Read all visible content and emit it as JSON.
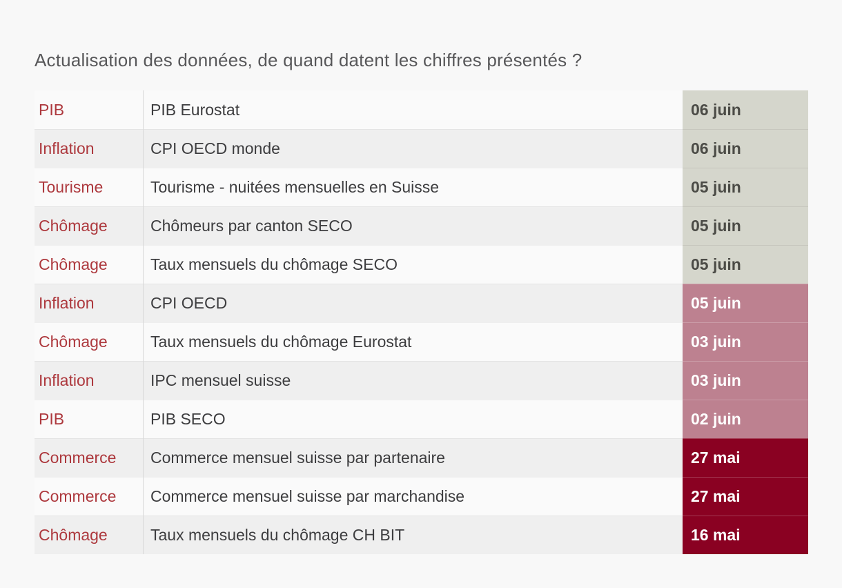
{
  "page": {
    "title": "Actualisation des données, de quand datent les chiffres présentés ?"
  },
  "colors": {
    "page_bg": "#f8f8f8",
    "title_text": "#58585a",
    "category_text": "#ad383d",
    "description_text": "#3d3d3f",
    "row_odd_bg": "#fafafa",
    "row_even_bg": "#efefef",
    "divider": "#d9d9d9",
    "date_recent_bg": "#d5d6cc",
    "date_recent_text": "#4b4b46",
    "date_mid_bg": "#bd8190",
    "date_mid_text": "#ffffff",
    "date_old_bg": "#8a0122",
    "date_old_text": "#ffffff"
  },
  "chart_data": {
    "type": "table",
    "title": "Actualisation des données, de quand datent les chiffres présentés ?",
    "columns": [
      "category",
      "description",
      "date"
    ],
    "rows": [
      {
        "category": "PIB",
        "description": "PIB Eurostat",
        "date": "06 juin",
        "freshness": "recent"
      },
      {
        "category": "Inflation",
        "description": "CPI OECD monde",
        "date": "06 juin",
        "freshness": "recent"
      },
      {
        "category": "Tourisme",
        "description": "Tourisme - nuitées mensuelles en Suisse",
        "date": "05 juin",
        "freshness": "recent"
      },
      {
        "category": "Chômage",
        "description": "Chômeurs par canton SECO",
        "date": "05 juin",
        "freshness": "recent"
      },
      {
        "category": "Chômage",
        "description": "Taux mensuels du chômage SECO",
        "date": "05 juin",
        "freshness": "recent"
      },
      {
        "category": "Inflation",
        "description": "CPI OECD",
        "date": "05 juin",
        "freshness": "mid"
      },
      {
        "category": "Chômage",
        "description": "Taux mensuels du chômage Eurostat",
        "date": "03 juin",
        "freshness": "mid"
      },
      {
        "category": "Inflation",
        "description": "IPC mensuel suisse",
        "date": "03 juin",
        "freshness": "mid"
      },
      {
        "category": "PIB",
        "description": "PIB SECO",
        "date": "02 juin",
        "freshness": "mid"
      },
      {
        "category": "Commerce",
        "description": "Commerce mensuel suisse par partenaire",
        "date": "27 mai",
        "freshness": "old"
      },
      {
        "category": "Commerce",
        "description": "Commerce mensuel suisse par marchandise",
        "date": "27 mai",
        "freshness": "old"
      },
      {
        "category": "Chômage",
        "description": "Taux mensuels du chômage CH BIT",
        "date": "16 mai",
        "freshness": "old"
      }
    ]
  }
}
